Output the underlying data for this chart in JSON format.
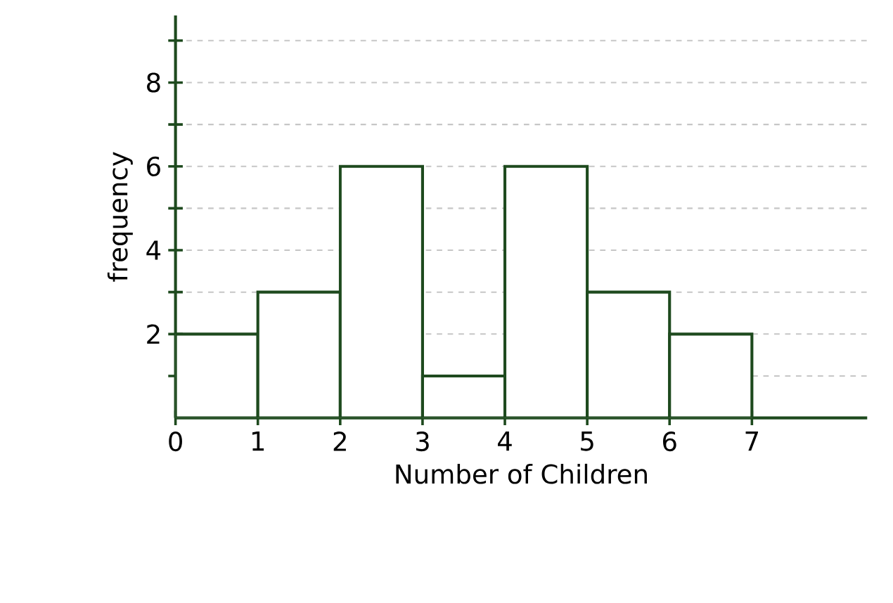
{
  "chart_data": {
    "type": "histogram",
    "xlabel": "Number of Children",
    "ylabel": "frequency",
    "bins": [
      0,
      1,
      2,
      3,
      4,
      5,
      6,
      7
    ],
    "values": [
      2,
      3,
      6,
      1,
      6,
      3,
      2
    ],
    "color": "#1e4a1e",
    "xlim": [
      0,
      8.4
    ],
    "ylim": [
      0,
      9.6
    ],
    "xticks": [
      0,
      1,
      2,
      3,
      4,
      5,
      6,
      7
    ],
    "yticks": [
      {
        "value": 1,
        "label": null
      },
      2,
      {
        "value": 3,
        "label": null
      },
      4,
      {
        "value": 5,
        "label": null
      },
      6,
      {
        "value": 7,
        "label": null
      },
      8,
      {
        "value": 9,
        "label": null
      }
    ],
    "grid": "y"
  }
}
